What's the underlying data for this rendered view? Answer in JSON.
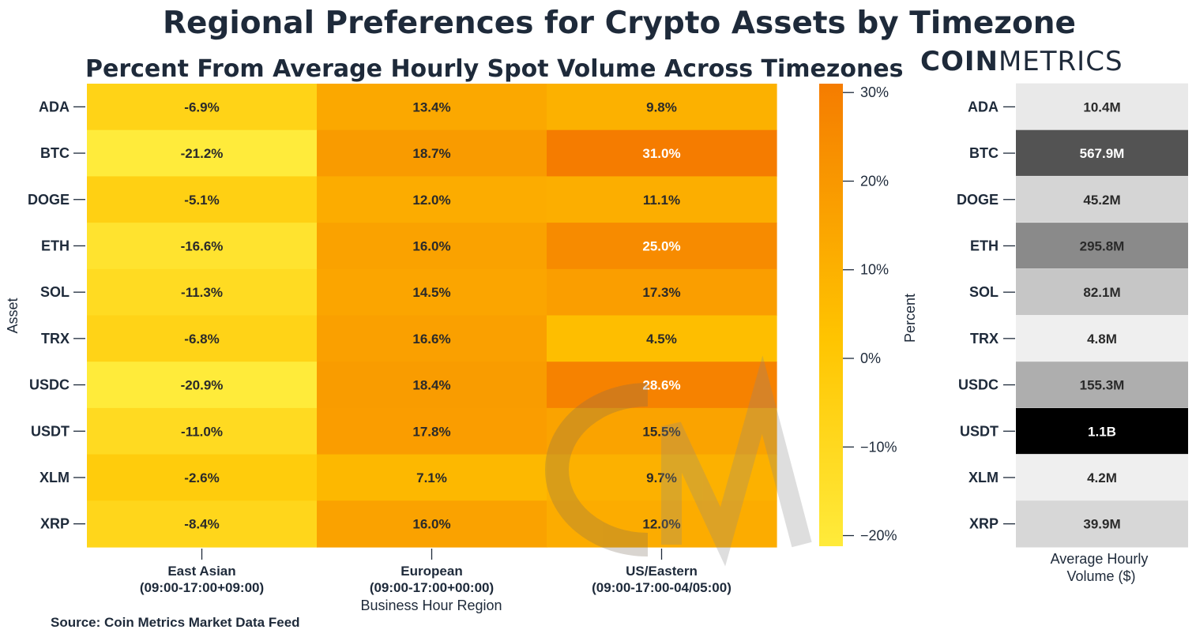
{
  "title": "Regional Preferences for Crypto Assets by Timezone",
  "brand": {
    "bold": "COIN",
    "light": "METRICS"
  },
  "source": "Source: Coin Metrics Market Data Feed",
  "colors": {
    "heat_low": "#ffeb3b",
    "heat_mid": "#ffc400",
    "heat_high": "#f57c00",
    "bar_light": "#f7f7f7",
    "bar_dark": "#000000",
    "text": "#1e2a3a"
  },
  "chart_data": [
    {
      "type": "heatmap",
      "title": "Percent From Average Hourly Spot Volume Across Timezones",
      "ylabel": "Asset",
      "xlabel": "Business Hour Region",
      "rows": [
        "ADA",
        "BTC",
        "DOGE",
        "ETH",
        "SOL",
        "TRX",
        "USDC",
        "USDT",
        "XLM",
        "XRP"
      ],
      "columns": [
        {
          "name": "East Asian",
          "hours": "(09:00-17:00+09:00)"
        },
        {
          "name": "European",
          "hours": "(09:00-17:00+00:00)"
        },
        {
          "name": "US/Eastern",
          "hours": "(09:00-17:00-04/05:00)"
        }
      ],
      "values": [
        [
          -6.9,
          13.4,
          9.8
        ],
        [
          -21.2,
          18.7,
          31.0
        ],
        [
          -5.1,
          12.0,
          11.1
        ],
        [
          -16.6,
          16.0,
          25.0
        ],
        [
          -11.3,
          14.5,
          17.3
        ],
        [
          -6.8,
          16.6,
          4.5
        ],
        [
          -20.9,
          18.4,
          28.6
        ],
        [
          -11.0,
          17.8,
          15.5
        ],
        [
          -2.6,
          7.1,
          9.7
        ],
        [
          -8.4,
          16.0,
          12.0
        ]
      ],
      "value_labels": [
        [
          "-6.9%",
          "13.4%",
          "9.8%"
        ],
        [
          "-21.2%",
          "18.7%",
          "31.0%"
        ],
        [
          "-5.1%",
          "12.0%",
          "11.1%"
        ],
        [
          "-16.6%",
          "16.0%",
          "25.0%"
        ],
        [
          "-11.3%",
          "14.5%",
          "17.3%"
        ],
        [
          "-6.8%",
          "16.6%",
          "4.5%"
        ],
        [
          "-20.9%",
          "18.4%",
          "28.6%"
        ],
        [
          "-11.0%",
          "17.8%",
          "15.5%"
        ],
        [
          "-2.6%",
          "7.1%",
          "9.7%"
        ],
        [
          "-8.4%",
          "16.0%",
          "12.0%"
        ]
      ],
      "colorbar": {
        "label": "Percent",
        "range": [
          -21.2,
          31.0
        ],
        "ticks": [
          30,
          20,
          10,
          0,
          -10,
          -20
        ],
        "tick_labels": [
          "30%",
          "20%",
          "10%",
          "0%",
          "−10%",
          "−20%"
        ]
      }
    },
    {
      "type": "bar",
      "xlabel": "Average Hourly\nVolume ($)",
      "categories": [
        "ADA",
        "BTC",
        "DOGE",
        "ETH",
        "SOL",
        "TRX",
        "USDC",
        "USDT",
        "XLM",
        "XRP"
      ],
      "values": [
        10400000,
        567900000,
        45200000,
        295800000,
        82100000,
        4800000,
        155300000,
        1100000000,
        4200000,
        39900000
      ],
      "value_labels": [
        "10.4M",
        "567.9M",
        "45.2M",
        "295.8M",
        "82.1M",
        "4.8M",
        "155.3M",
        "1.1B",
        "4.2M",
        "39.9M"
      ]
    }
  ]
}
